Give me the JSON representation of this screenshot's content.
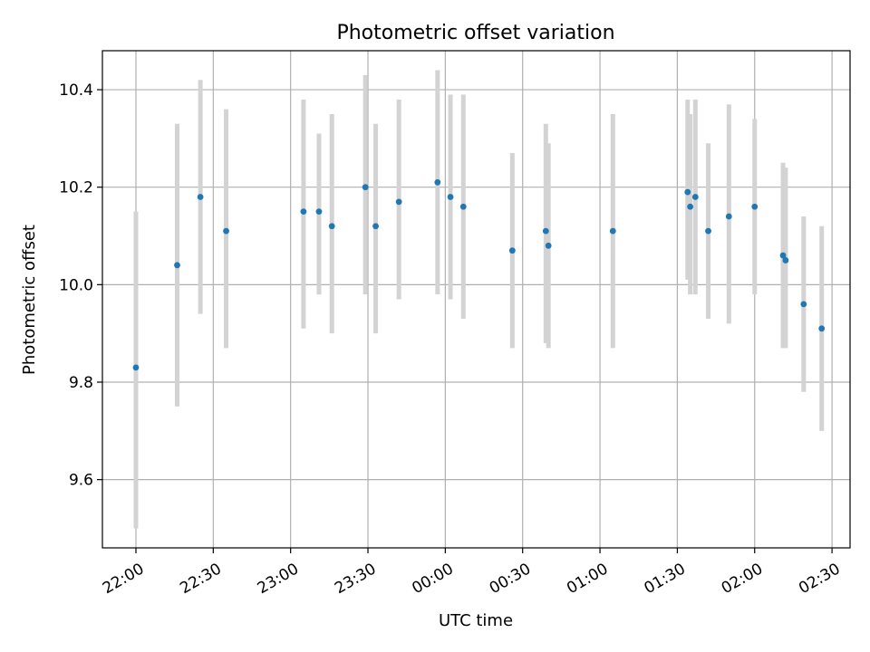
{
  "chart_data": {
    "type": "scatter",
    "title": "Photometric offset variation",
    "xlabel": "UTC time",
    "ylabel": "Photometric offset",
    "x_tick_labels": [
      "22:00",
      "22:30",
      "23:00",
      "23:30",
      "00:00",
      "00:30",
      "01:00",
      "01:30",
      "02:00",
      "02:30"
    ],
    "y_tick_labels": [
      "9.6",
      "9.8",
      "10.0",
      "10.2",
      "10.4"
    ],
    "x_ticks_min": [
      0,
      30,
      60,
      90,
      120,
      150,
      180,
      210,
      240,
      270
    ],
    "y_ticks": [
      9.6,
      9.8,
      10.0,
      10.2,
      10.4
    ],
    "xlim_min": [
      -13,
      277
    ],
    "ylim": [
      9.46,
      10.48
    ],
    "grid": true,
    "colors": {
      "points": "#1f77b4",
      "errorbars": "#d3d3d3",
      "grid": "#b0b0b0"
    },
    "points": [
      {
        "t": "22:00",
        "y": 9.83,
        "lo": 9.5,
        "hi": 10.15
      },
      {
        "t": "22:16",
        "y": 10.04,
        "lo": 9.75,
        "hi": 10.33
      },
      {
        "t": "22:25",
        "y": 10.18,
        "lo": 9.94,
        "hi": 10.42
      },
      {
        "t": "22:35",
        "y": 10.11,
        "lo": 9.87,
        "hi": 10.36
      },
      {
        "t": "23:05",
        "y": 10.15,
        "lo": 9.91,
        "hi": 10.38
      },
      {
        "t": "23:11",
        "y": 10.15,
        "lo": 9.98,
        "hi": 10.31
      },
      {
        "t": "23:16",
        "y": 10.12,
        "lo": 9.9,
        "hi": 10.35
      },
      {
        "t": "23:29",
        "y": 10.2,
        "lo": 9.98,
        "hi": 10.43
      },
      {
        "t": "23:33",
        "y": 10.12,
        "lo": 9.9,
        "hi": 10.33
      },
      {
        "t": "23:42",
        "y": 10.17,
        "lo": 9.97,
        "hi": 10.38
      },
      {
        "t": "23:57",
        "y": 10.21,
        "lo": 9.98,
        "hi": 10.44
      },
      {
        "t": "00:02",
        "y": 10.18,
        "lo": 9.97,
        "hi": 10.39
      },
      {
        "t": "00:07",
        "y": 10.16,
        "lo": 9.93,
        "hi": 10.39
      },
      {
        "t": "00:26",
        "y": 10.07,
        "lo": 9.87,
        "hi": 10.27
      },
      {
        "t": "00:39",
        "y": 10.11,
        "lo": 9.88,
        "hi": 10.33
      },
      {
        "t": "00:40",
        "y": 10.08,
        "lo": 9.87,
        "hi": 10.29
      },
      {
        "t": "01:05",
        "y": 10.11,
        "lo": 9.87,
        "hi": 10.35
      },
      {
        "t": "01:34",
        "y": 10.19,
        "lo": 10.01,
        "hi": 10.38
      },
      {
        "t": "01:35",
        "y": 10.16,
        "lo": 9.98,
        "hi": 10.35
      },
      {
        "t": "01:37",
        "y": 10.18,
        "lo": 9.98,
        "hi": 10.38
      },
      {
        "t": "01:42",
        "y": 10.11,
        "lo": 9.93,
        "hi": 10.29
      },
      {
        "t": "01:50",
        "y": 10.14,
        "lo": 9.92,
        "hi": 10.37
      },
      {
        "t": "02:00",
        "y": 10.16,
        "lo": 9.98,
        "hi": 10.34
      },
      {
        "t": "02:11",
        "y": 10.06,
        "lo": 9.87,
        "hi": 10.25
      },
      {
        "t": "02:12",
        "y": 10.05,
        "lo": 9.87,
        "hi": 10.24
      },
      {
        "t": "02:19",
        "y": 9.96,
        "lo": 9.78,
        "hi": 10.14
      },
      {
        "t": "02:26",
        "y": 9.91,
        "lo": 9.7,
        "hi": 10.12
      }
    ]
  }
}
